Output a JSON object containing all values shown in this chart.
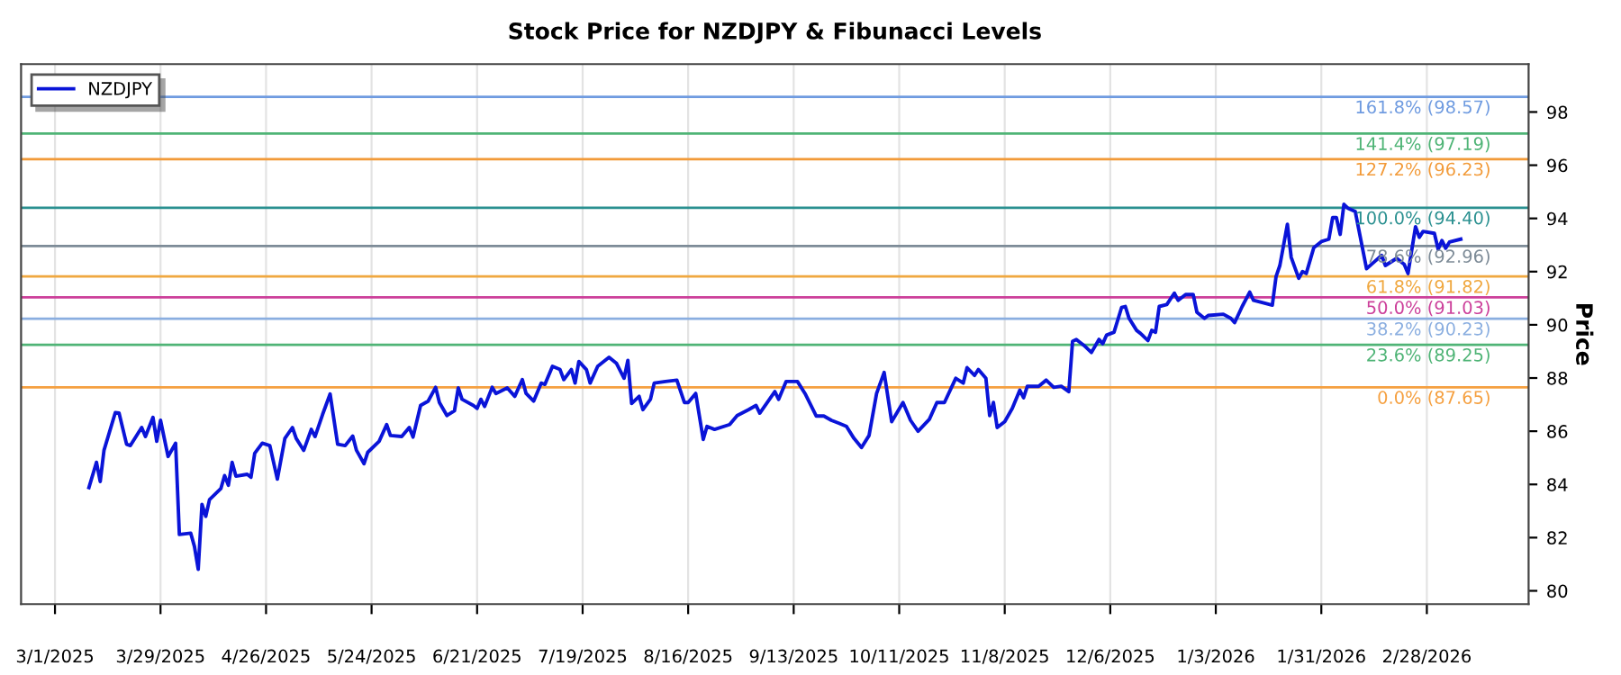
{
  "chart_data": {
    "type": "line",
    "title": "Stock Price for NZDJPY & Fibunacci Levels",
    "ylabel": "Price",
    "x": [
      "2025-03-10",
      "2025-03-12",
      "2025-03-13",
      "2025-03-14",
      "2025-03-17",
      "2025-03-18",
      "2025-03-20",
      "2025-03-21",
      "2025-03-24",
      "2025-03-25",
      "2025-03-27",
      "2025-03-28",
      "2025-03-29",
      "2025-03-31",
      "2025-04-02",
      "2025-04-03",
      "2025-04-06",
      "2025-04-07",
      "2025-04-08",
      "2025-04-09",
      "2025-04-10",
      "2025-04-11",
      "2025-04-14",
      "2025-04-15",
      "2025-04-16",
      "2025-04-17",
      "2025-04-18",
      "2025-04-21",
      "2025-04-22",
      "2025-04-23",
      "2025-04-25",
      "2025-04-27",
      "2025-04-29",
      "2025-05-01",
      "2025-05-03",
      "2025-05-04",
      "2025-05-06",
      "2025-05-08",
      "2025-05-09",
      "2025-05-11",
      "2025-05-13",
      "2025-05-15",
      "2025-05-17",
      "2025-05-19",
      "2025-05-20",
      "2025-05-22",
      "2025-05-23",
      "2025-05-26",
      "2025-05-28",
      "2025-05-29",
      "2025-06-01",
      "2025-06-03",
      "2025-06-04",
      "2025-06-06",
      "2025-06-08",
      "2025-06-10",
      "2025-06-11",
      "2025-06-13",
      "2025-06-15",
      "2025-06-16",
      "2025-06-17",
      "2025-06-20",
      "2025-06-21",
      "2025-06-22",
      "2025-06-23",
      "2025-06-25",
      "2025-06-26",
      "2025-06-29",
      "2025-07-01",
      "2025-07-03",
      "2025-07-04",
      "2025-07-06",
      "2025-07-08",
      "2025-07-09",
      "2025-07-11",
      "2025-07-13",
      "2025-07-14",
      "2025-07-16",
      "2025-07-17",
      "2025-07-18",
      "2025-07-20",
      "2025-07-21",
      "2025-07-23",
      "2025-07-26",
      "2025-07-28",
      "2025-07-30",
      "2025-07-31",
      "2025-08-01",
      "2025-08-03",
      "2025-08-04",
      "2025-08-06",
      "2025-08-07",
      "2025-08-10",
      "2025-08-13",
      "2025-08-15",
      "2025-08-16",
      "2025-08-18",
      "2025-08-20",
      "2025-08-21",
      "2025-08-23",
      "2025-08-27",
      "2025-08-29",
      "2025-09-01",
      "2025-09-03",
      "2025-09-04",
      "2025-09-06",
      "2025-09-08",
      "2025-09-09",
      "2025-09-11",
      "2025-09-14",
      "2025-09-16",
      "2025-09-19",
      "2025-09-21",
      "2025-09-23",
      "2025-09-25",
      "2025-09-27",
      "2025-09-29",
      "2025-10-01",
      "2025-10-03",
      "2025-10-05",
      "2025-10-07",
      "2025-10-09",
      "2025-10-12",
      "2025-10-14",
      "2025-10-16",
      "2025-10-19",
      "2025-10-21",
      "2025-10-23",
      "2025-10-26",
      "2025-10-28",
      "2025-10-29",
      "2025-10-31",
      "2025-11-01",
      "2025-11-03",
      "2025-11-04",
      "2025-11-05",
      "2025-11-06",
      "2025-11-08",
      "2025-11-10",
      "2025-11-12",
      "2025-11-13",
      "2025-11-14",
      "2025-11-17",
      "2025-11-19",
      "2025-11-21",
      "2025-11-23",
      "2025-11-25",
      "2025-11-26",
      "2025-11-27",
      "2025-11-29",
      "2025-12-01",
      "2025-12-03",
      "2025-12-04",
      "2025-12-05",
      "2025-12-07",
      "2025-12-09",
      "2025-12-10",
      "2025-12-11",
      "2025-12-13",
      "2025-12-14",
      "2025-12-16",
      "2025-12-17",
      "2025-12-18",
      "2025-12-19",
      "2025-12-21",
      "2025-12-23",
      "2025-12-24",
      "2025-12-26",
      "2025-12-28",
      "2025-12-29",
      "2025-12-31",
      "2026-01-01",
      "2026-01-05",
      "2026-01-07",
      "2026-01-08",
      "2026-01-10",
      "2026-01-12",
      "2026-01-13",
      "2026-01-16",
      "2026-01-18",
      "2026-01-19",
      "2026-01-20",
      "2026-01-22",
      "2026-01-23",
      "2026-01-25",
      "2026-01-26",
      "2026-01-27",
      "2026-01-29",
      "2026-01-31",
      "2026-02-02",
      "2026-02-03",
      "2026-02-04",
      "2026-02-05",
      "2026-02-06",
      "2026-02-07",
      "2026-02-09",
      "2026-02-12",
      "2026-02-16",
      "2026-02-17",
      "2026-02-20",
      "2026-02-22",
      "2026-02-23",
      "2026-02-25",
      "2026-02-26",
      "2026-02-27",
      "2026-03-02",
      "2026-03-03",
      "2026-03-04",
      "2026-03-05",
      "2026-03-06",
      "2026-03-09"
    ],
    "series": [
      {
        "name": "NZDJPY",
        "color": "#0a14d8",
        "values": [
          83.88,
          84.83,
          84.11,
          85.28,
          86.7,
          86.68,
          85.51,
          85.46,
          86.14,
          85.8,
          86.52,
          85.62,
          86.41,
          85.05,
          85.55,
          82.12,
          82.17,
          81.67,
          80.81,
          83.25,
          82.8,
          83.43,
          83.84,
          84.33,
          83.97,
          84.83,
          84.31,
          84.38,
          84.27,
          85.17,
          85.55,
          85.46,
          84.2,
          85.73,
          86.14,
          85.73,
          85.28,
          86.07,
          85.8,
          86.63,
          87.4,
          85.51,
          85.46,
          85.82,
          85.28,
          84.78,
          85.21,
          85.62,
          86.25,
          85.84,
          85.8,
          86.14,
          85.78,
          86.97,
          87.13,
          87.65,
          87.08,
          86.59,
          86.77,
          87.63,
          87.2,
          86.97,
          86.86,
          87.2,
          86.93,
          87.65,
          87.42,
          87.63,
          87.31,
          87.94,
          87.42,
          87.13,
          87.81,
          87.76,
          88.44,
          88.32,
          87.94,
          88.32,
          87.81,
          88.62,
          88.32,
          87.81,
          88.44,
          88.78,
          88.55,
          87.99,
          88.66,
          87.04,
          87.31,
          86.81,
          87.2,
          87.81,
          87.87,
          87.92,
          87.08,
          87.08,
          87.42,
          85.69,
          86.18,
          86.07,
          86.25,
          86.59,
          86.81,
          86.97,
          86.68,
          87.08,
          87.49,
          87.2,
          87.87,
          87.87,
          87.42,
          86.57,
          86.57,
          86.41,
          86.3,
          86.18,
          85.73,
          85.39,
          85.84,
          87.42,
          88.21,
          86.36,
          87.08,
          86.41,
          86.0,
          86.45,
          87.08,
          87.08,
          87.99,
          87.81,
          88.39,
          88.1,
          88.32,
          87.99,
          86.59,
          87.08,
          86.14,
          86.36,
          86.86,
          87.54,
          87.26,
          87.69,
          87.69,
          87.92,
          87.65,
          87.69,
          87.49,
          89.38,
          89.45,
          89.23,
          88.96,
          89.45,
          89.29,
          89.61,
          89.72,
          90.65,
          90.69,
          90.24,
          89.79,
          89.68,
          89.41,
          89.79,
          89.72,
          90.69,
          90.76,
          91.19,
          90.92,
          91.14,
          91.14,
          90.47,
          90.24,
          90.35,
          90.4,
          90.24,
          90.08,
          90.69,
          91.23,
          90.92,
          90.81,
          90.74,
          91.82,
          92.23,
          93.78,
          92.54,
          91.75,
          92.0,
          91.93,
          92.9,
          93.13,
          93.22,
          94.03,
          94.03,
          93.4,
          94.53,
          94.39,
          94.26,
          92.11,
          92.61,
          92.23,
          92.5,
          92.27,
          91.93,
          93.69,
          93.29,
          93.51,
          93.44,
          92.84,
          93.17,
          92.88,
          93.11,
          93.22
        ]
      }
    ],
    "ref_lines": [
      {
        "axis": "y",
        "value": 98.57,
        "label": "161.8% (98.57)",
        "color": "#6f9be0"
      },
      {
        "axis": "y",
        "value": 97.19,
        "label": "141.4% (97.19)",
        "color": "#4fb476"
      },
      {
        "axis": "y",
        "value": 96.23,
        "label": "127.2% (96.23)",
        "color": "#f29a38"
      },
      {
        "axis": "y",
        "value": 94.4,
        "label": "100.0% (94.40)",
        "color": "#2a9090"
      },
      {
        "axis": "y",
        "value": 92.96,
        "label": "78.6% (92.96)",
        "color": "#7d8b97"
      },
      {
        "axis": "y",
        "value": 91.82,
        "label": "61.8% (91.82)",
        "color": "#f0a840"
      },
      {
        "axis": "y",
        "value": 91.03,
        "label": "50.0% (91.03)",
        "color": "#cc3f9a"
      },
      {
        "axis": "y",
        "value": 90.23,
        "label": "38.2% (90.23)",
        "color": "#8aaee0"
      },
      {
        "axis": "y",
        "value": 89.25,
        "label": "23.6% (89.25)",
        "color": "#4fb476"
      },
      {
        "axis": "y",
        "value": 87.65,
        "label": "0.0% (87.65)",
        "color": "#f5a040"
      }
    ],
    "xlim": [
      "2025-02-20",
      "2026-03-27"
    ],
    "ylim": [
      79.5,
      99.8
    ],
    "xticks": [
      {
        "value": "2025-03-01",
        "label": "3/1/2025"
      },
      {
        "value": "2025-03-29",
        "label": "3/29/2025"
      },
      {
        "value": "2025-04-26",
        "label": "4/26/2025"
      },
      {
        "value": "2025-05-24",
        "label": "5/24/2025"
      },
      {
        "value": "2025-06-21",
        "label": "6/21/2025"
      },
      {
        "value": "2025-07-19",
        "label": "7/19/2025"
      },
      {
        "value": "2025-08-16",
        "label": "8/16/2025"
      },
      {
        "value": "2025-09-13",
        "label": "9/13/2025"
      },
      {
        "value": "2025-10-11",
        "label": "10/11/2025"
      },
      {
        "value": "2025-11-08",
        "label": "11/8/2025"
      },
      {
        "value": "2025-12-06",
        "label": "12/6/2025"
      },
      {
        "value": "2026-01-03",
        "label": "1/3/2026"
      },
      {
        "value": "2026-01-31",
        "label": "1/31/2026"
      },
      {
        "value": "2026-02-28",
        "label": "2/28/2026"
      }
    ],
    "yticks": [
      80,
      82,
      84,
      86,
      88,
      90,
      92,
      94,
      96,
      98
    ],
    "grid": "x",
    "legend": "top left",
    "marker": "none",
    "line_style": "solid"
  }
}
